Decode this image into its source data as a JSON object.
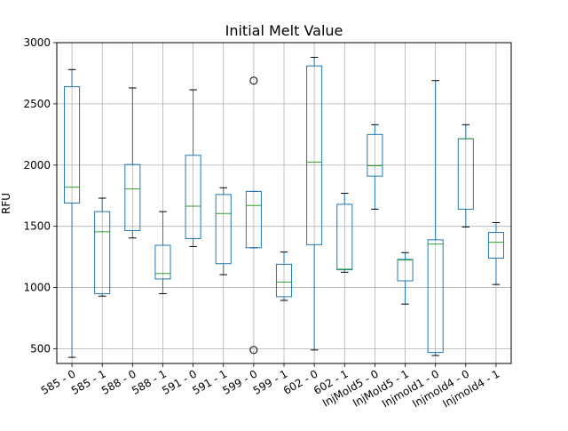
{
  "chart_data": {
    "type": "box",
    "title": "Initial Melt Value",
    "xlabel": "",
    "ylabel": "RFU",
    "ylim": [
      380,
      3000
    ],
    "yticks": [
      500,
      1000,
      1500,
      2000,
      2500,
      3000
    ],
    "grid": true,
    "colors": {
      "box": "#1f77b4",
      "median": "#2ca02c",
      "whisker": "#1f77b4",
      "grid": "#b0b0b0"
    },
    "categories": [
      "585 - 0",
      "585 - 1",
      "588 - 0",
      "588 - 1",
      "591 - 0",
      "591 - 1",
      "599 - 0",
      "599 - 1",
      "602 - 0",
      "602 - 1",
      "InjMold5 - 0",
      "InjMold5 - 1",
      "Injmold1 - 0",
      "Injmold4 - 0",
      "Injmold4 - 1"
    ],
    "boxes": [
      {
        "whislo": 430,
        "q1": 1690,
        "med": 1820,
        "q3": 2640,
        "whishi": 2780,
        "fliers": []
      },
      {
        "whislo": 930,
        "q1": 950,
        "med": 1455,
        "q3": 1620,
        "whishi": 1730,
        "fliers": []
      },
      {
        "whislo": 1405,
        "q1": 1465,
        "med": 1805,
        "q3": 2005,
        "whishi": 2630,
        "fliers": []
      },
      {
        "whislo": 950,
        "q1": 1070,
        "med": 1115,
        "q3": 1345,
        "whishi": 1620,
        "fliers": []
      },
      {
        "whislo": 1335,
        "q1": 1400,
        "med": 1665,
        "q3": 2080,
        "whishi": 2615,
        "fliers": []
      },
      {
        "whislo": 1105,
        "q1": 1195,
        "med": 1605,
        "q3": 1760,
        "whishi": 1815,
        "fliers": []
      },
      {
        "whislo": 1325,
        "q1": 1325,
        "med": 1670,
        "q3": 1785,
        "whishi": 1785,
        "fliers": [
          2690,
          490
        ]
      },
      {
        "whislo": 895,
        "q1": 925,
        "med": 1045,
        "q3": 1190,
        "whishi": 1290,
        "fliers": []
      },
      {
        "whislo": 490,
        "q1": 1350,
        "med": 2025,
        "q3": 2810,
        "whishi": 2880,
        "fliers": []
      },
      {
        "whislo": 1125,
        "q1": 1145,
        "med": 1150,
        "q3": 1680,
        "whishi": 1770,
        "fliers": []
      },
      {
        "whislo": 1640,
        "q1": 1910,
        "med": 1995,
        "q3": 2250,
        "whishi": 2330,
        "fliers": []
      },
      {
        "whislo": 865,
        "q1": 1055,
        "med": 1225,
        "q3": 1230,
        "whishi": 1285,
        "fliers": []
      },
      {
        "whislo": 445,
        "q1": 470,
        "med": 1355,
        "q3": 1390,
        "whishi": 2690,
        "fliers": []
      },
      {
        "whislo": 1495,
        "q1": 1640,
        "med": 2215,
        "q3": 2215,
        "whishi": 2330,
        "fliers": []
      },
      {
        "whislo": 1025,
        "q1": 1240,
        "med": 1370,
        "q3": 1450,
        "whishi": 1530,
        "fliers": []
      }
    ]
  }
}
